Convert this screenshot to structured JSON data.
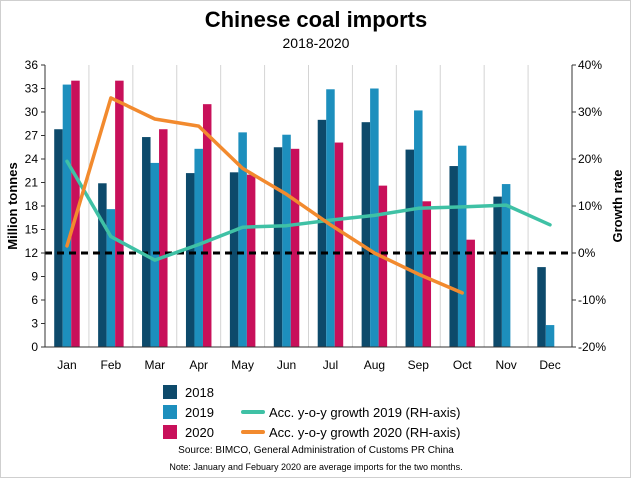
{
  "chart_data": {
    "type": "bar",
    "title": "Chinese coal imports",
    "subtitle": "2018-2020",
    "categories": [
      "Jan",
      "Feb",
      "Mar",
      "Apr",
      "May",
      "Jun",
      "Jul",
      "Aug",
      "Sep",
      "Oct",
      "Nov",
      "Dec"
    ],
    "ylabel": "Million tonnes",
    "y2label": "Growth rate",
    "ylim": [
      0,
      36
    ],
    "yticks": [
      "0",
      "3",
      "6",
      "9",
      "12",
      "15",
      "18",
      "21",
      "24",
      "27",
      "30",
      "33",
      "36"
    ],
    "y2lim": [
      -20,
      40
    ],
    "y2ticks": [
      "-20%",
      "-10%",
      "0%",
      "10%",
      "20%",
      "30%",
      "40%"
    ],
    "reference_line": {
      "axis": "y2",
      "value": 0,
      "style": "dashed"
    },
    "series": [
      {
        "name": "2018",
        "kind": "bar",
        "color": "#0d4a6b",
        "values": [
          27.8,
          20.9,
          26.8,
          22.2,
          22.3,
          25.5,
          29.0,
          28.7,
          25.2,
          23.1,
          19.2,
          10.2
        ]
      },
      {
        "name": "2019",
        "kind": "bar",
        "color": "#1d8fbd",
        "values": [
          33.5,
          17.6,
          23.5,
          25.3,
          27.4,
          27.1,
          32.9,
          33.0,
          30.2,
          25.7,
          20.8,
          2.8
        ]
      },
      {
        "name": "2020",
        "kind": "bar",
        "color": "#c8105a",
        "values": [
          34.0,
          34.0,
          27.8,
          31.0,
          22.0,
          25.3,
          26.1,
          20.6,
          18.6,
          13.7,
          null,
          null
        ]
      },
      {
        "name": "Acc. y-o-y growth 2019 (RH-axis)",
        "kind": "line",
        "axis": "y2",
        "color": "#3fc1a5",
        "values": [
          19.5,
          3.5,
          -1.5,
          1.8,
          5.5,
          5.8,
          7.0,
          8.0,
          9.5,
          9.8,
          10.2,
          6.0
        ]
      },
      {
        "name": "Acc. y-o-y growth 2020 (RH-axis)",
        "kind": "line",
        "axis": "y2",
        "color": "#f28a2e",
        "values": [
          1.5,
          33.0,
          28.5,
          27.0,
          18.0,
          12.5,
          6.0,
          0.0,
          -4.5,
          -8.5,
          null,
          null
        ]
      }
    ],
    "source": "Source: BIMCO, General Administration of Customs PR China",
    "note": "Note: January and Febuary 2020 are average imports for the two months."
  }
}
